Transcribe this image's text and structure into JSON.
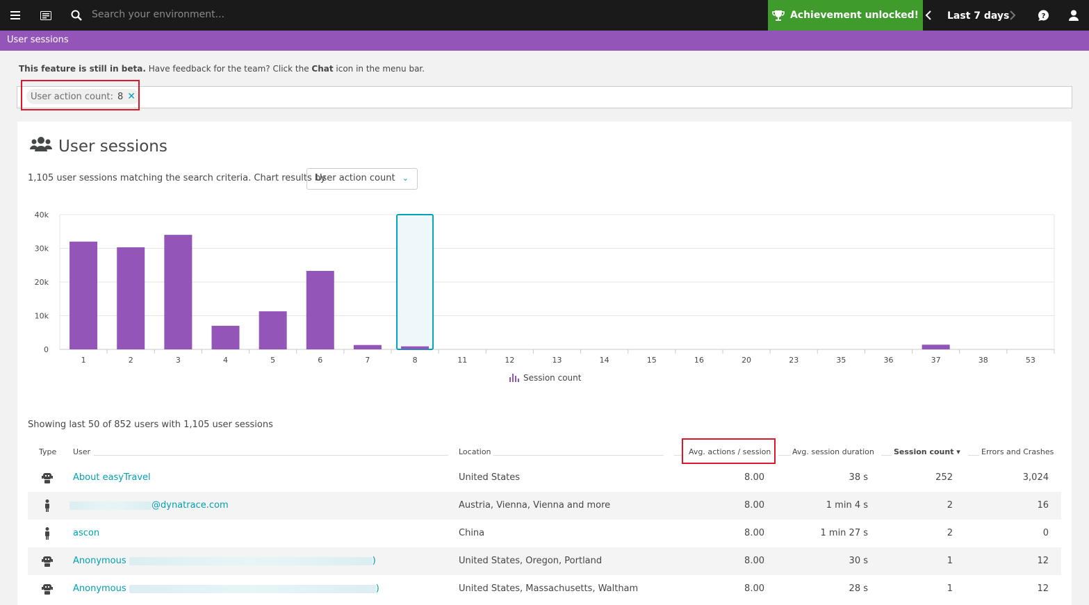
{
  "topbar": {
    "search_placeholder": "Search your environment...",
    "achievement": "Achievement unlocked!",
    "timeframe": "Last 7 days"
  },
  "page": {
    "title": "User sessions",
    "beta_bold": "This feature is still in beta.",
    "beta_text_1": " Have feedback for the team? Click the ",
    "beta_chat": "Chat",
    "beta_text_2": " icon in the menu bar."
  },
  "filter": {
    "key": "User action count:",
    "value": "8"
  },
  "card": {
    "title": "User sessions",
    "subtitle": "1,105 user sessions matching the search criteria. Chart results by",
    "dropdown_value": "User action count"
  },
  "chart_data": {
    "type": "bar",
    "categories": [
      "1",
      "2",
      "3",
      "4",
      "5",
      "6",
      "7",
      "8",
      "11",
      "12",
      "13",
      "14",
      "15",
      "16",
      "20",
      "23",
      "35",
      "36",
      "37",
      "38",
      "53"
    ],
    "series": [
      {
        "name": "Session count",
        "values": [
          32000,
          30300,
          34000,
          7000,
          11300,
          23300,
          1300,
          900,
          0,
          0,
          0,
          0,
          0,
          0,
          0,
          0,
          0,
          0,
          1400,
          0,
          0
        ]
      }
    ],
    "y_ticks": [
      "0",
      "10k",
      "20k",
      "30k",
      "40k"
    ],
    "ylim": [
      0,
      40000
    ],
    "highlighted_category": "8",
    "grid": true,
    "bar_color": "#9355b7",
    "highlight_color": "#00a1b2",
    "legend_position": "bottom"
  },
  "table": {
    "summary": "Showing last 50 of 852 users with 1,105 user sessions",
    "headers": {
      "type": "Type",
      "user": "User",
      "location": "Location",
      "avg_actions": "Avg. actions / session",
      "avg_duration": "Avg. session duration",
      "session_count": "Session count ▾",
      "errors": "Errors and Crashes"
    },
    "rows": [
      {
        "type_icon": "robot-icon",
        "user": "About easyTravel",
        "location": "United States",
        "avg_actions": "8.00",
        "duration": "38 s",
        "sessions": "252",
        "errors": "3,024"
      },
      {
        "type_icon": "person-icon",
        "user": "@dynatrace.com",
        "location": "Austria, Vienna, Vienna and more",
        "avg_actions": "8.00",
        "duration": "1 min 4 s",
        "sessions": "2",
        "errors": "16"
      },
      {
        "type_icon": "person-icon",
        "user": "ascon",
        "location": "China",
        "avg_actions": "8.00",
        "duration": "1 min 27 s",
        "sessions": "2",
        "errors": "0"
      },
      {
        "type_icon": "robot-icon",
        "user": "Anonymous",
        "user_suffix": ")",
        "location": "United States, Oregon, Portland",
        "avg_actions": "8.00",
        "duration": "30 s",
        "sessions": "1",
        "errors": "12"
      },
      {
        "type_icon": "robot-icon",
        "user": "Anonymous",
        "user_suffix": ")",
        "location": "United States, Massachusetts, Waltham",
        "avg_actions": "8.00",
        "duration": "28 s",
        "sessions": "1",
        "errors": "12"
      }
    ]
  }
}
